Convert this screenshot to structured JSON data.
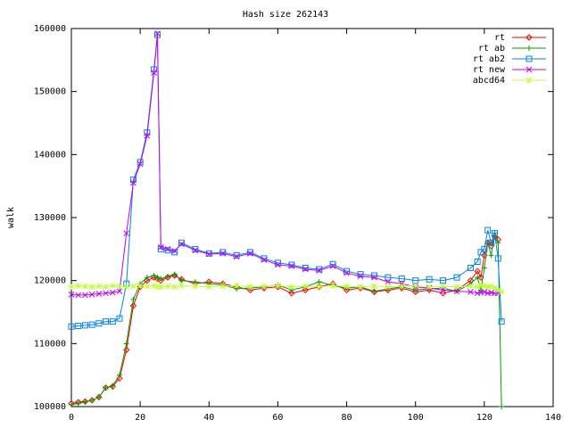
{
  "chart_data": {
    "type": "line",
    "title": "Hash size 262143",
    "y_label": "walk",
    "x": [
      0,
      2,
      4,
      6,
      8,
      10,
      12,
      14,
      16,
      18,
      20,
      22,
      24,
      25,
      26,
      28,
      30,
      32,
      36,
      40,
      44,
      48,
      52,
      56,
      60,
      64,
      68,
      72,
      76,
      80,
      84,
      88,
      92,
      96,
      100,
      104,
      108,
      112,
      116,
      118,
      119,
      120,
      121,
      122,
      123,
      124,
      125
    ],
    "series": [
      {
        "name": "rt",
        "color": "#ff0000",
        "marker": "diamond",
        "values": [
          100500,
          100700,
          100800,
          101000,
          101500,
          103000,
          103200,
          104500,
          109000,
          116000,
          119000,
          120000,
          120500,
          120300,
          120000,
          120500,
          120800,
          120200,
          119500,
          119800,
          119500,
          119000,
          118500,
          118800,
          119000,
          118000,
          118500,
          119000,
          119500,
          118500,
          118800,
          118200,
          118500,
          118800,
          118200,
          118500,
          118000,
          118500,
          120000,
          121500,
          120500,
          124000,
          126000,
          125500,
          127000,
          126500,
          null
        ]
      },
      {
        "name": "rt ab",
        "color": "#00a000",
        "marker": "plus",
        "values": [
          100300,
          100500,
          100700,
          101000,
          101500,
          103000,
          103300,
          105000,
          110000,
          117000,
          119500,
          120500,
          120800,
          120500,
          120300,
          120700,
          121000,
          120000,
          119800,
          119500,
          119300,
          118700,
          118800,
          119000,
          119300,
          118500,
          119000,
          119800,
          119200,
          118800,
          119000,
          118300,
          118700,
          119000,
          118500,
          118700,
          118800,
          118300,
          119500,
          120500,
          118500,
          122000,
          126000,
          124000,
          127500,
          126000,
          100000
        ]
      },
      {
        "name": "rt ab2",
        "color": "#0080ff",
        "marker": "square",
        "values": [
          112700,
          112800,
          112900,
          113000,
          113200,
          113500,
          113500,
          114000,
          119500,
          136000,
          138800,
          143500,
          153500,
          159000,
          125000,
          124800,
          124500,
          126000,
          125000,
          124300,
          124500,
          124000,
          124500,
          123500,
          122800,
          122500,
          122000,
          121800,
          122600,
          121500,
          121000,
          120800,
          120500,
          120300,
          120000,
          120200,
          120000,
          120500,
          122000,
          123000,
          124500,
          125000,
          128000,
          126000,
          127500,
          123500,
          113500
        ]
      },
      {
        "name": "rt new",
        "color": "#c000ff",
        "marker": "cross",
        "values": [
          117800,
          117700,
          117700,
          117800,
          117900,
          118000,
          118100,
          118300,
          127500,
          135500,
          138500,
          143000,
          153000,
          159200,
          125300,
          125000,
          124700,
          125800,
          124800,
          124200,
          124300,
          123800,
          124300,
          123300,
          122500,
          122300,
          121800,
          121600,
          122300,
          121200,
          120700,
          120500,
          119800,
          119500,
          119000,
          118800,
          118500,
          118300,
          118200,
          118000,
          118100,
          118200,
          118000,
          118100,
          118000,
          118000,
          null
        ]
      },
      {
        "name": "abcd64",
        "color": "#c0ff40",
        "marker": "star",
        "values": [
          119000,
          119200,
          119100,
          119000,
          119100,
          119000,
          119200,
          119100,
          119000,
          119100,
          119200,
          119100,
          119200,
          119000,
          119000,
          119100,
          119000,
          119200,
          119100,
          119000,
          119100,
          119200,
          119000,
          119100,
          119200,
          119000,
          119100,
          119000,
          119200,
          119100,
          119000,
          119100,
          119000,
          119100,
          119200,
          119000,
          119100,
          119000,
          119100,
          119000,
          119200,
          119100,
          119000,
          119100,
          118800,
          118500,
          118200
        ]
      }
    ],
    "xlim": [
      0,
      140
    ],
    "xticks": [
      0,
      20,
      40,
      60,
      80,
      100,
      120,
      140
    ],
    "ylim": [
      100000,
      160000
    ],
    "yticks": [
      100000,
      110000,
      120000,
      130000,
      140000,
      150000,
      160000
    ],
    "grid": false,
    "legend": "top-right"
  }
}
